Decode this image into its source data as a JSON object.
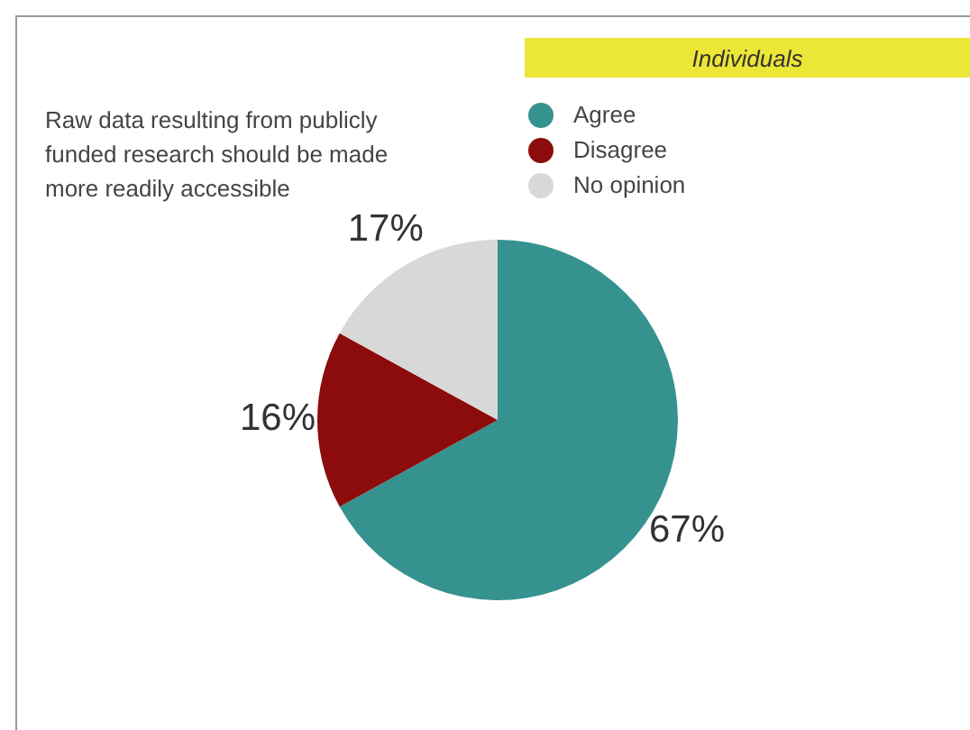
{
  "chart_data": {
    "type": "pie",
    "title": "Raw data resulting from publicly funded research should be made more readily accessible",
    "subtitle": "Individuals",
    "categories": [
      "Agree",
      "Disagree",
      "No opinion"
    ],
    "values": [
      67,
      16,
      17
    ],
    "colors": [
      "#35928f",
      "#8b0c0b",
      "#d8d8d8"
    ],
    "value_labels": [
      "67%",
      "16%",
      "17%"
    ],
    "legend": "top"
  }
}
